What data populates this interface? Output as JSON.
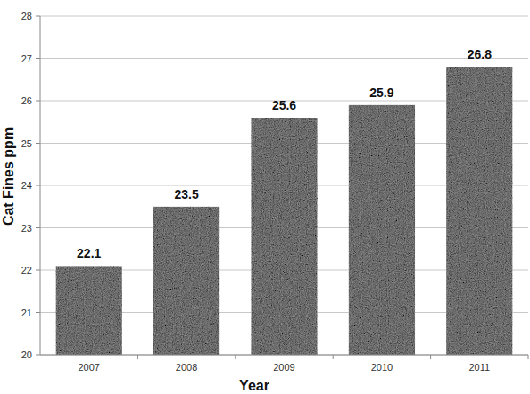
{
  "chart_data": {
    "type": "bar",
    "x_label": "Year",
    "y_label": "Cat Fines ppm",
    "categories": [
      "2007",
      "2008",
      "2009",
      "2010",
      "2011"
    ],
    "values": [
      22.1,
      23.5,
      25.6,
      25.9,
      26.8
    ],
    "color": "#8e8e8e",
    "ylim": [
      20,
      28
    ],
    "yticks": [
      20,
      21,
      22,
      23,
      24,
      25,
      26,
      27,
      28
    ],
    "grid": true,
    "data_labels": true
  }
}
